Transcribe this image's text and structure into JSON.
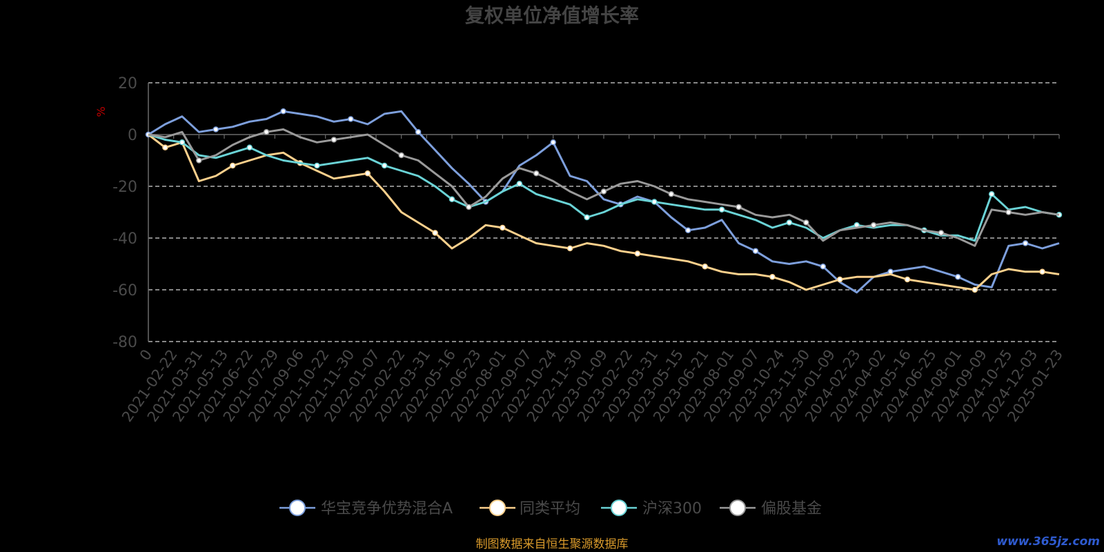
{
  "chart_data": {
    "type": "line",
    "title": "复权单位净值增长率",
    "ylabel": "%",
    "ylim": [
      -80,
      20
    ],
    "yticks": [
      "20",
      "0",
      "-20",
      "-40",
      "-60",
      "-80"
    ],
    "x_tick_labels": [
      "0",
      "2021-02-22",
      "2021-03-31",
      "2021-05-13",
      "2021-06-22",
      "2021-07-29",
      "2021-09-06",
      "2021-10-22",
      "2021-11-30",
      "2022-01-07",
      "2022-02-22",
      "2022-03-31",
      "2022-05-16",
      "2022-06-23",
      "2022-08-01",
      "2022-09-07",
      "2022-10-24",
      "2022-11-30",
      "2023-01-09",
      "2023-02-22",
      "2023-03-31",
      "2023-05-15",
      "2023-06-21",
      "2023-08-01",
      "2023-09-07",
      "2023-10-24",
      "2023-11-30",
      "2024-01-09",
      "2024-02-23",
      "2024-04-02",
      "2024-05-16",
      "2024-06-25",
      "2024-08-01",
      "2024-09-09",
      "2024-10-25",
      "2024-12-03",
      "2025-01-23"
    ],
    "grid": true,
    "legend_position": "bottom",
    "series": [
      {
        "name": "华宝竞争优势混合A",
        "color": "#7d9fdc",
        "values": [
          0,
          4,
          7,
          1,
          2,
          3,
          5,
          6,
          9,
          8,
          7,
          5,
          6,
          4,
          8,
          9,
          1,
          -6,
          -13,
          -19,
          -26,
          -22,
          -12,
          -8,
          -3,
          -16,
          -18,
          -25,
          -27,
          -24,
          -26,
          -32,
          -37,
          -36,
          -33,
          -42,
          -45,
          -49,
          -50,
          -49,
          -51,
          -57,
          -61,
          -55,
          -53,
          -52,
          -51,
          -53,
          -55,
          -58,
          -59,
          -43,
          -42,
          -44,
          -42
        ]
      },
      {
        "name": "同类平均",
        "color": "#fcd08c",
        "values": [
          0,
          -5,
          -3,
          -18,
          -16,
          -12,
          -10,
          -8,
          -7,
          -11,
          -14,
          -17,
          -16,
          -15,
          -22,
          -30,
          -34,
          -38,
          -44,
          -40,
          -35,
          -36,
          -39,
          -42,
          -43,
          -44,
          -42,
          -43,
          -45,
          -46,
          -47,
          -48,
          -49,
          -51,
          -53,
          -54,
          -54,
          -55,
          -57,
          -60,
          -58,
          -56,
          -55,
          -55,
          -54,
          -56,
          -57,
          -58,
          -59,
          -60,
          -54,
          -52,
          -53,
          -53,
          -54
        ]
      },
      {
        "name": "沪深300",
        "color": "#6ad3d6",
        "values": [
          0,
          -2,
          -3,
          -8,
          -9,
          -7,
          -5,
          -8,
          -10,
          -11,
          -12,
          -11,
          -10,
          -9,
          -12,
          -14,
          -16,
          -20,
          -25,
          -28,
          -26,
          -22,
          -19,
          -23,
          -25,
          -27,
          -32,
          -30,
          -27,
          -25,
          -26,
          -27,
          -28,
          -29,
          -29,
          -31,
          -33,
          -36,
          -34,
          -36,
          -40,
          -37,
          -35,
          -36,
          -35,
          -35,
          -37,
          -39,
          -39,
          -41,
          -23,
          -29,
          -28,
          -30,
          -31
        ]
      },
      {
        "name": "偏股基金",
        "color": "#9a9a9a",
        "values": [
          0,
          -1,
          1,
          -10,
          -8,
          -4,
          -1,
          1,
          2,
          -1,
          -3,
          -2,
          -1,
          0,
          -4,
          -8,
          -10,
          -15,
          -20,
          -28,
          -24,
          -17,
          -13,
          -15,
          -18,
          -22,
          -25,
          -22,
          -19,
          -18,
          -20,
          -23,
          -25,
          -26,
          -27,
          -28,
          -31,
          -32,
          -31,
          -34,
          -41,
          -37,
          -36,
          -35,
          -34,
          -35,
          -37,
          -38,
          -40,
          -43,
          -29,
          -30,
          -31,
          -30,
          -31
        ]
      }
    ]
  },
  "source_note": "制图数据来自恒生聚源数据库",
  "watermark": "www.365jz.com"
}
